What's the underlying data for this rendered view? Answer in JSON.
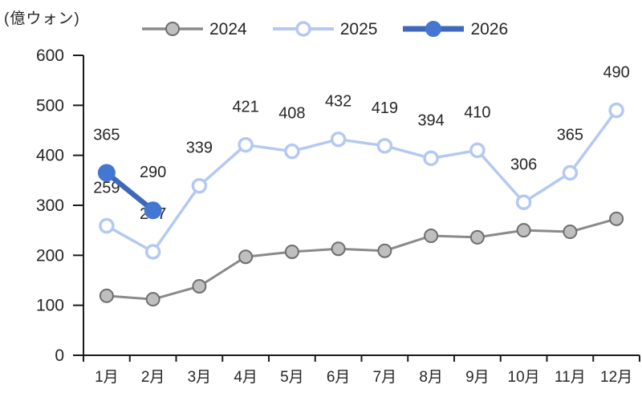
{
  "chart_data": {
    "type": "line",
    "title": "",
    "unit_label": "(億ウォン)",
    "categories": [
      "1月",
      "2月",
      "3月",
      "4月",
      "5月",
      "6月",
      "7月",
      "8月",
      "9月",
      "10月",
      "11月",
      "12月"
    ],
    "y_axis": {
      "min": 0,
      "max": 600,
      "step": 100,
      "tick_labels": [
        "0",
        "100",
        "200",
        "300",
        "400",
        "500",
        "600"
      ]
    },
    "grid": false,
    "legend_position": "top",
    "axis_color": "#1a1a1a",
    "label_color": "#262626",
    "series": [
      {
        "name": "2024",
        "color": "#8a8a8a",
        "marker": "filled-circle",
        "marker_fill": "#bfbfbf",
        "marker_stroke": "#6e6e6e",
        "line_width": 3,
        "marker_radius": 8,
        "data_labels": false,
        "values": [
          119,
          112,
          138,
          197,
          207,
          213,
          209,
          239,
          236,
          250,
          247,
          273
        ]
      },
      {
        "name": "2025",
        "color": "#b4c9f2",
        "marker": "open-circle",
        "marker_fill": "#ffffff",
        "marker_stroke": "#b4c9f2",
        "line_width": 3.5,
        "marker_radius": 8,
        "data_labels": true,
        "values": [
          259,
          207,
          339,
          421,
          408,
          432,
          419,
          394,
          410,
          306,
          365,
          490
        ]
      },
      {
        "name": "2026",
        "color": "#3f68ba",
        "marker": "filled-circle",
        "marker_fill": "#4477d2",
        "marker_stroke": "#4477d2",
        "line_width": 6.5,
        "marker_radius": 10,
        "data_labels": true,
        "values": [
          365,
          290,
          null,
          null,
          null,
          null,
          null,
          null,
          null,
          null,
          null,
          null
        ]
      }
    ]
  }
}
